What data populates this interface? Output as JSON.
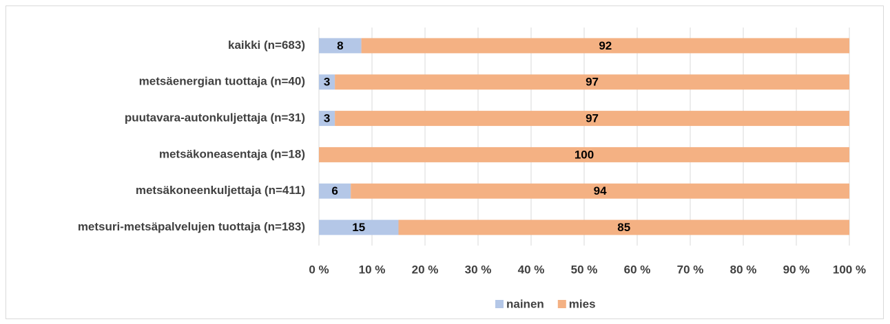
{
  "chart_data": {
    "type": "stacked_barh",
    "categories": [
      "kaikki (n=683)",
      "metsäenergian tuottaja (n=40)",
      "puutavara-autonkuljettaja (n=31)",
      "metsäkoneasentaja (n=18)",
      "metsäkoneenkuljettaja (n=411)",
      "metsuri-metsäpalvelujen tuottaja (n=183)"
    ],
    "series": [
      {
        "name": "nainen",
        "color": "#b4c7e7",
        "values": [
          8,
          3,
          3,
          0,
          6,
          15
        ]
      },
      {
        "name": "mies",
        "color": "#f4b183",
        "values": [
          92,
          97,
          97,
          100,
          94,
          85
        ]
      }
    ],
    "xlim": [
      0,
      100
    ],
    "xticks": [
      {
        "value": 0,
        "label": "0 %"
      },
      {
        "value": 10,
        "label": "10 %"
      },
      {
        "value": 20,
        "label": "20 %"
      },
      {
        "value": 30,
        "label": "30 %"
      },
      {
        "value": 40,
        "label": "40 %"
      },
      {
        "value": 50,
        "label": "50 %"
      },
      {
        "value": 60,
        "label": "60 %"
      },
      {
        "value": 70,
        "label": "70 %"
      },
      {
        "value": 80,
        "label": "80 %"
      },
      {
        "value": 90,
        "label": "90 %"
      },
      {
        "value": 100,
        "label": "100 %"
      }
    ],
    "grid": true,
    "legend": "bottom"
  }
}
